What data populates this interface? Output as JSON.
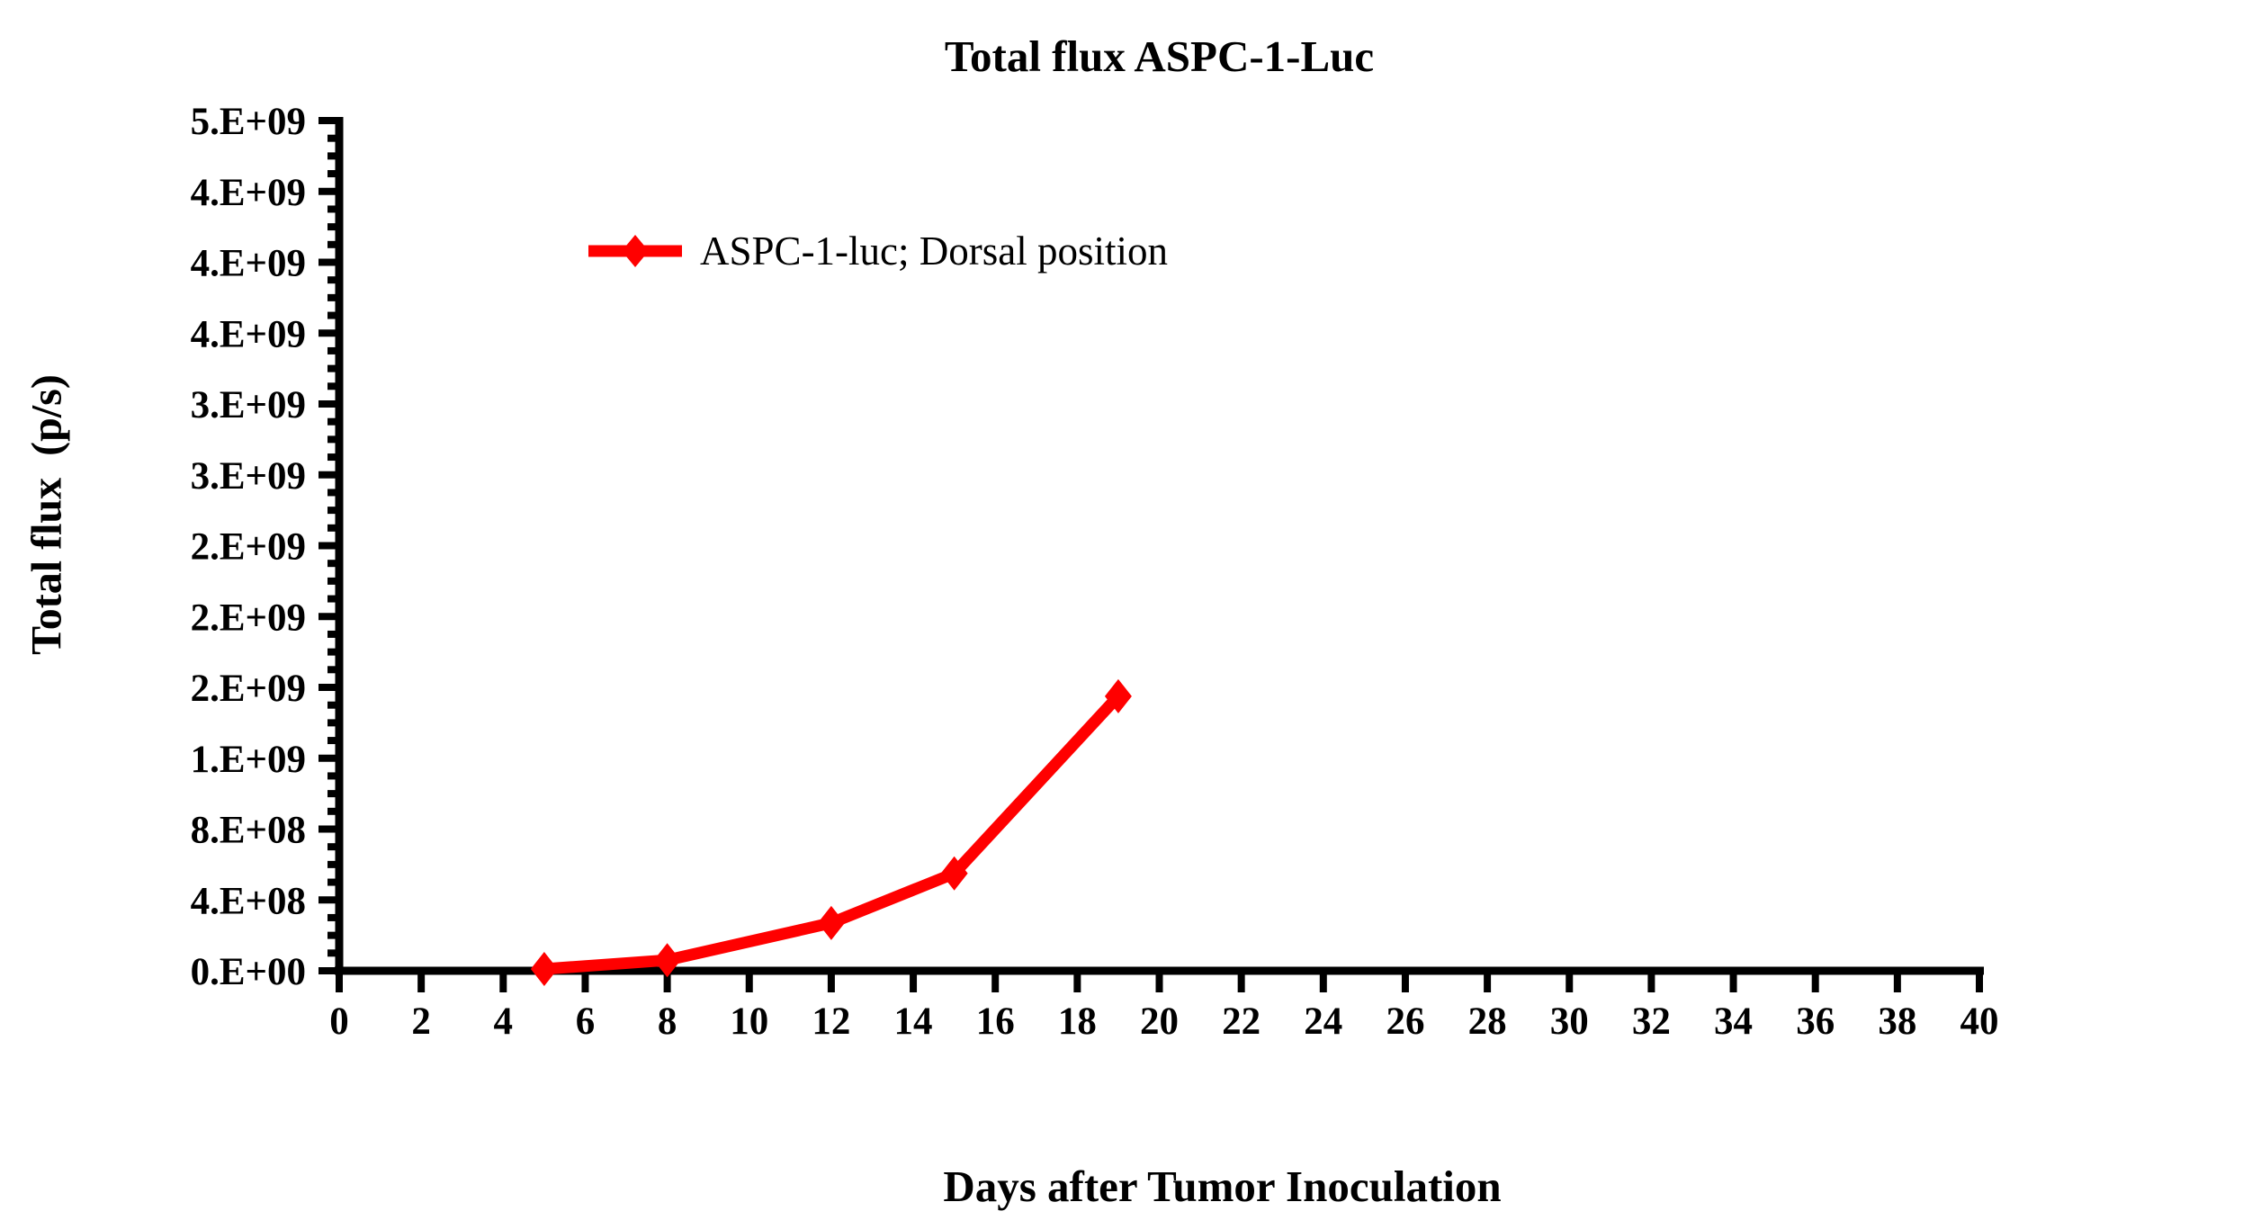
{
  "chart": {
    "title": "Total flux ASPC-1-Luc",
    "y_axis_title": "Total flux  (p/s)",
    "x_axis_title": "Days after Tumor Inoculation",
    "legend": {
      "series_label": "ASPC-1-luc; Dorsal position"
    }
  },
  "chart_data": {
    "type": "line",
    "title": "Total flux ASPC-1-Luc",
    "xlabel": "Days after Tumor Inoculation",
    "ylabel": "Total flux  (p/s)",
    "grid": false,
    "legend_position": "inside-upper-left",
    "series": [
      {
        "name": "ASPC-1-luc; Dorsal position",
        "marker": "diamond",
        "color": "#FF0000",
        "x": [
          5,
          8,
          12,
          15,
          19
        ],
        "y": [
          10000000,
          60000000,
          270000000,
          550000000,
          1550000000
        ]
      }
    ],
    "xlim": [
      0,
      40
    ],
    "ylim": [
      0,
      4800000000
    ],
    "x_tick_step": 2,
    "x_tick_labels": [
      "0",
      "2",
      "4",
      "6",
      "8",
      "10",
      "12",
      "14",
      "16",
      "18",
      "20",
      "22",
      "24",
      "26",
      "28",
      "30",
      "32",
      "34",
      "36",
      "38",
      "40"
    ],
    "y_major_step": 400000000,
    "y_minor_step": 100000000,
    "y_tick_labels_bottom_to_top": [
      "0.E+00",
      "4.E+08",
      "8.E+08",
      "1.E+09",
      "2.E+09",
      "2.E+09",
      "2.E+09",
      "3.E+09",
      "3.E+09",
      "4.E+09",
      "4.E+09",
      "4.E+09",
      "5.E+09"
    ],
    "axis_color": "#000000",
    "background": "#FFFFFF"
  }
}
